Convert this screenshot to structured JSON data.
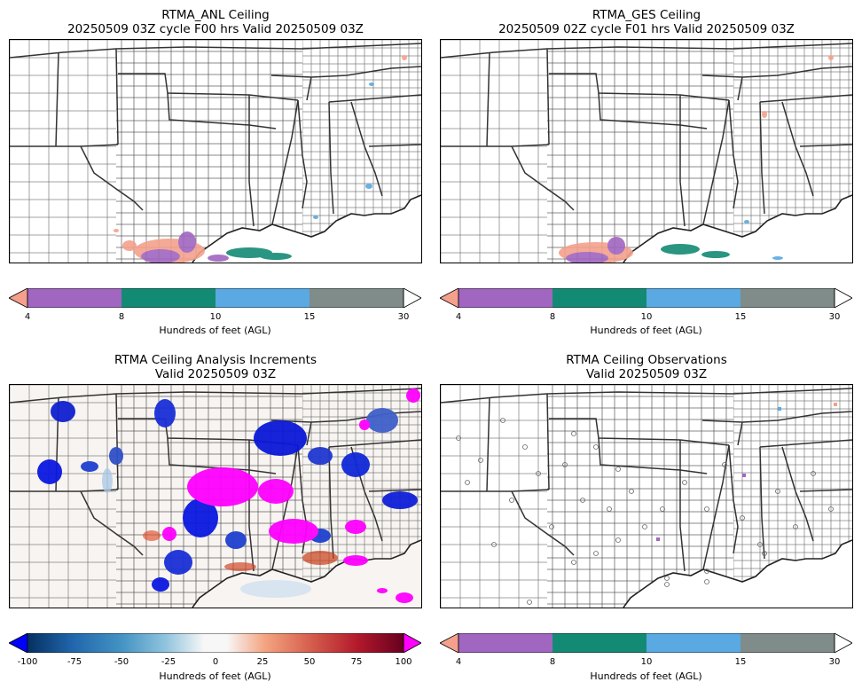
{
  "panels": {
    "top_left": {
      "title_line1": "RTMA_ANL Ceiling",
      "title_line2": "20250509 03Z cycle F00 hrs Valid 20250509 03Z"
    },
    "top_right": {
      "title_line1": "RTMA_GES Ceiling",
      "title_line2": "20250509 02Z cycle F01 hrs Valid 20250509 03Z"
    },
    "bottom_left": {
      "title_line1": "RTMA Ceiling Analysis Increments",
      "title_line2": "Valid 20250509 03Z"
    },
    "bottom_right": {
      "title_line1": "RTMA Ceiling Observations",
      "title_line2": "Valid 20250509 03Z"
    }
  },
  "ceiling_colorbar": {
    "label": "Hundreds of feet (AGL)",
    "ticks": [
      "4",
      "8",
      "10",
      "15",
      "30"
    ],
    "under_color": "#f4a08c",
    "over_color": "#ffffff",
    "bins": [
      {
        "from": 4,
        "to": 8,
        "color": "#a066c0"
      },
      {
        "from": 8,
        "to": 10,
        "color": "#138a74"
      },
      {
        "from": 10,
        "to": 15,
        "color": "#5aa9e2"
      },
      {
        "from": 15,
        "to": 30,
        "color": "#7f8c8a"
      }
    ]
  },
  "increment_colorbar": {
    "label": "Hundreds of feet (AGL)",
    "ticks": [
      "-100",
      "-75",
      "-50",
      "-25",
      "0",
      "25",
      "50",
      "75",
      "100"
    ],
    "under_color": "#0000ff",
    "over_color": "#ff00ff",
    "colormap": "RdBu_r"
  }
}
